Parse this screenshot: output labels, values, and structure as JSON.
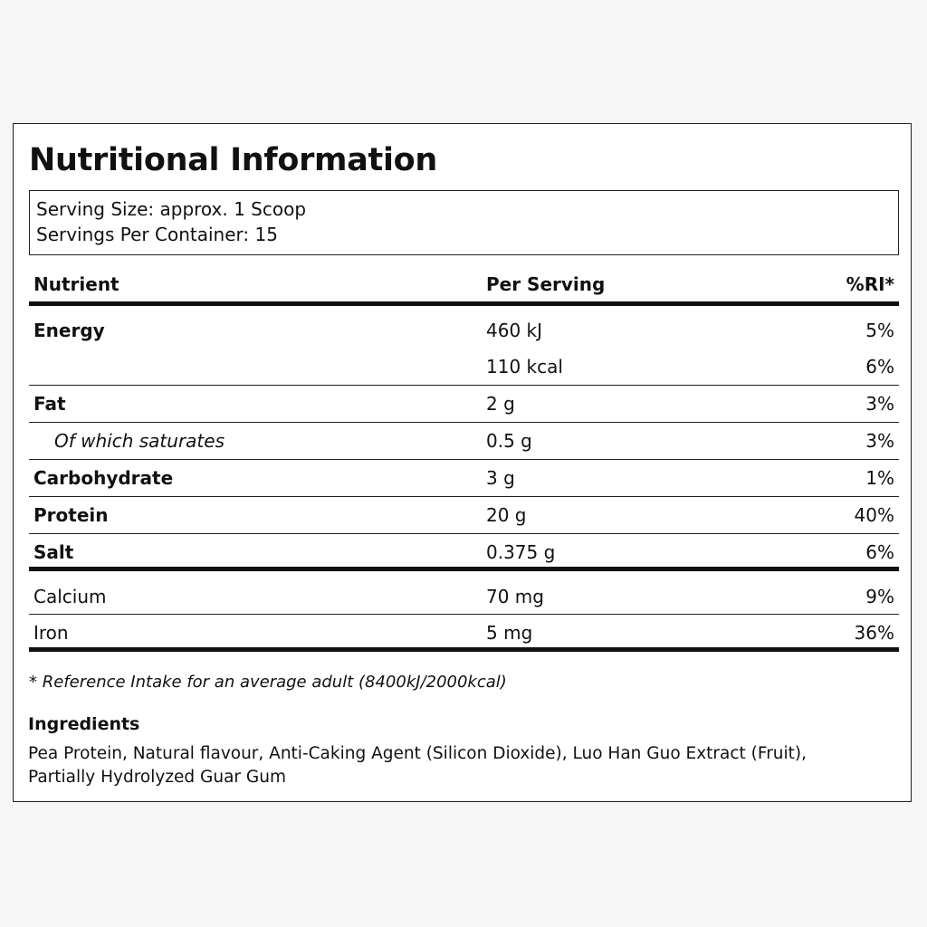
{
  "title": "Nutritional Information",
  "serving": {
    "size": "Serving Size: approx. 1 Scoop",
    "per_container": "Servings Per Container: 15"
  },
  "table": {
    "headers": {
      "nutrient": "Nutrient",
      "per_serving": "Per Serving",
      "ri": "%RI*"
    },
    "energy": {
      "name": "Energy",
      "kj": "460 kJ",
      "kj_ri": "5%",
      "kcal": "110 kcal",
      "kcal_ri": "6%"
    },
    "rows": [
      {
        "name": "Fat",
        "value": "2 g",
        "ri": "3%"
      },
      {
        "name": "Of which saturates",
        "value": "0.5 g",
        "ri": "3%"
      },
      {
        "name": "Carbohydrate",
        "value": "3 g",
        "ri": "1%"
      },
      {
        "name": "Protein",
        "value": "20 g",
        "ri": "40%"
      },
      {
        "name": "Salt",
        "value": "0.375 g",
        "ri": "6%"
      }
    ],
    "minerals": [
      {
        "name": "Calcium",
        "value": "70 mg",
        "ri": "9%"
      },
      {
        "name": "Iron",
        "value": "5 mg",
        "ri": "36%"
      }
    ]
  },
  "footnote": "* Reference Intake for an average adult (8400kJ/2000kcal)",
  "ingredients": {
    "title": "Ingredients",
    "text": "Pea Protein, Natural flavour, Anti-Caking Agent (Silicon Dioxide), Luo Han Guo Extract (Fruit), Partially Hydrolyzed Guar Gum"
  }
}
